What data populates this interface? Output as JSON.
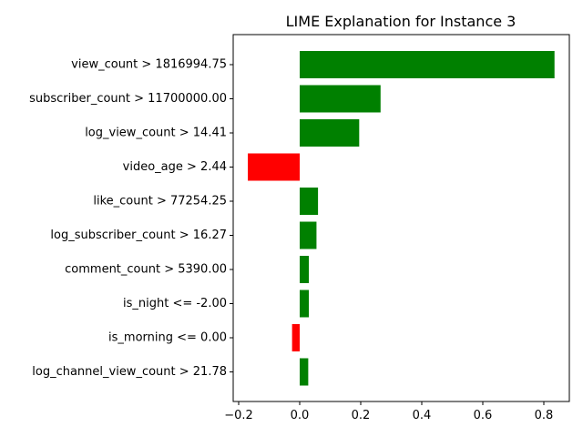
{
  "chart_data": {
    "type": "bar",
    "orientation": "horizontal",
    "title": "LIME Explanation for Instance 3",
    "xlabel": "",
    "ylabel": "",
    "xlim": [
      -0.2,
      0.85
    ],
    "xticks": [
      -0.2,
      0.0,
      0.2,
      0.4,
      0.6,
      0.8
    ],
    "xtick_labels": [
      "−0.2",
      "0.0",
      "0.2",
      "0.4",
      "0.6",
      "0.8"
    ],
    "grid": false,
    "positive_color": "#008000",
    "negative_color": "#ff0000",
    "categories": [
      "view_count > 1816994.75",
      "subscriber_count > 11700000.00",
      "log_view_count > 14.41",
      "video_age > 2.44",
      "like_count > 77254.25",
      "log_subscriber_count > 16.27",
      "comment_count > 5390.00",
      "is_night <= -2.00",
      "is_morning <= 0.00",
      "log_channel_view_count > 21.78"
    ],
    "values": [
      0.835,
      0.265,
      0.195,
      -0.17,
      0.06,
      0.055,
      0.03,
      0.03,
      -0.025,
      0.028
    ]
  }
}
